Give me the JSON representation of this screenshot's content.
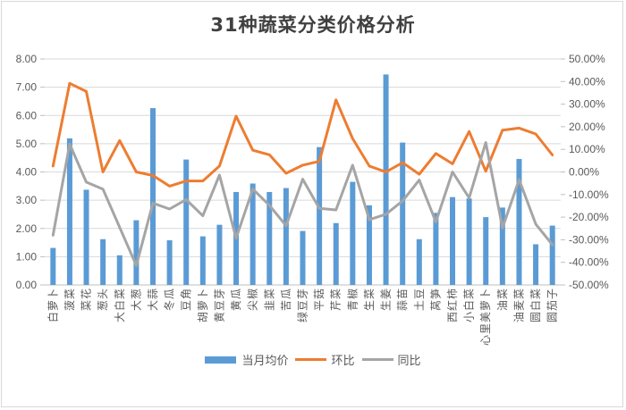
{
  "title": "31种蔬菜分类价格分析",
  "colors": {
    "bar": "#5b9bd5",
    "mom_line": "#ed7d31",
    "yoy_line": "#a5a5a5",
    "grid": "#d9d9d9",
    "axis": "#bfbfbf"
  },
  "legend": {
    "bar_label": "当月均价",
    "mom_label": "环比",
    "yoy_label": "同比"
  },
  "chart_data": {
    "type": "bar+line",
    "title": "31种蔬菜分类价格分析",
    "xlabel": "",
    "ylabel_left": "",
    "ylabel_right": "",
    "categories": [
      "白萝卜",
      "菠菜",
      "菜花",
      "葱头",
      "大白菜",
      "大葱",
      "大蒜",
      "冬瓜",
      "豆角",
      "胡萝卜",
      "黄豆芽",
      "黄瓜",
      "尖椒",
      "韭菜",
      "苦瓜",
      "绿豆芽",
      "平菇",
      "芹菜",
      "青椒",
      "生菜",
      "生姜",
      "蒜苗",
      "土豆",
      "莴笋",
      "西红柿",
      "小白菜",
      "心里美萝卜",
      "油菜",
      "油麦菜",
      "圆白菜",
      "圆茄子"
    ],
    "series": [
      {
        "name": "当月均价",
        "type": "bar",
        "axis": "left",
        "values": [
          1.31,
          5.19,
          3.37,
          1.62,
          1.05,
          2.29,
          6.26,
          1.58,
          4.44,
          1.72,
          2.13,
          3.29,
          3.59,
          3.29,
          3.43,
          1.91,
          4.88,
          2.19,
          3.65,
          2.82,
          7.45,
          5.04,
          1.62,
          2.55,
          3.11,
          3.06,
          2.4,
          2.74,
          4.46,
          1.44,
          2.1
        ]
      },
      {
        "name": "环比",
        "type": "line",
        "axis": "right",
        "unit": "%",
        "values": [
          2.6,
          39.2,
          35.6,
          0.0,
          13.9,
          0.0,
          -1.6,
          -6.3,
          -4.0,
          -4.0,
          2.6,
          24.7,
          9.6,
          7.6,
          -0.6,
          3.0,
          4.7,
          31.9,
          14.8,
          2.6,
          0.0,
          4.1,
          -1.0,
          8.2,
          3.6,
          17.9,
          0.3,
          18.5,
          19.4,
          16.8,
          7.5
        ]
      },
      {
        "name": "同比",
        "type": "line",
        "axis": "right",
        "unit": "%",
        "values": [
          -28.0,
          12.3,
          -4.5,
          -7.6,
          -24.5,
          -41.4,
          -13.8,
          -16.4,
          -12.2,
          -19.4,
          -1.4,
          -29.3,
          -7.6,
          -14.8,
          -23.8,
          -3.2,
          -16.1,
          -16.8,
          3.0,
          -21.1,
          -18.7,
          -12.8,
          -3.6,
          -22.1,
          0.0,
          -11.5,
          13.0,
          -24.7,
          -3.4,
          -23.1,
          -32.2
        ]
      }
    ],
    "ylim_left": [
      0,
      8
    ],
    "yticks_left": [
      "0.00",
      "1.00",
      "2.00",
      "3.00",
      "4.00",
      "5.00",
      "6.00",
      "7.00",
      "8.00"
    ],
    "ylim_right": [
      -50,
      50
    ],
    "yticks_right": [
      "-50.00%",
      "-40.00%",
      "-30.00%",
      "-20.00%",
      "-10.00%",
      "0.00%",
      "10.00%",
      "20.00%",
      "30.00%",
      "40.00%",
      "50.00%"
    ],
    "grid": true,
    "legend_position": "bottom"
  }
}
